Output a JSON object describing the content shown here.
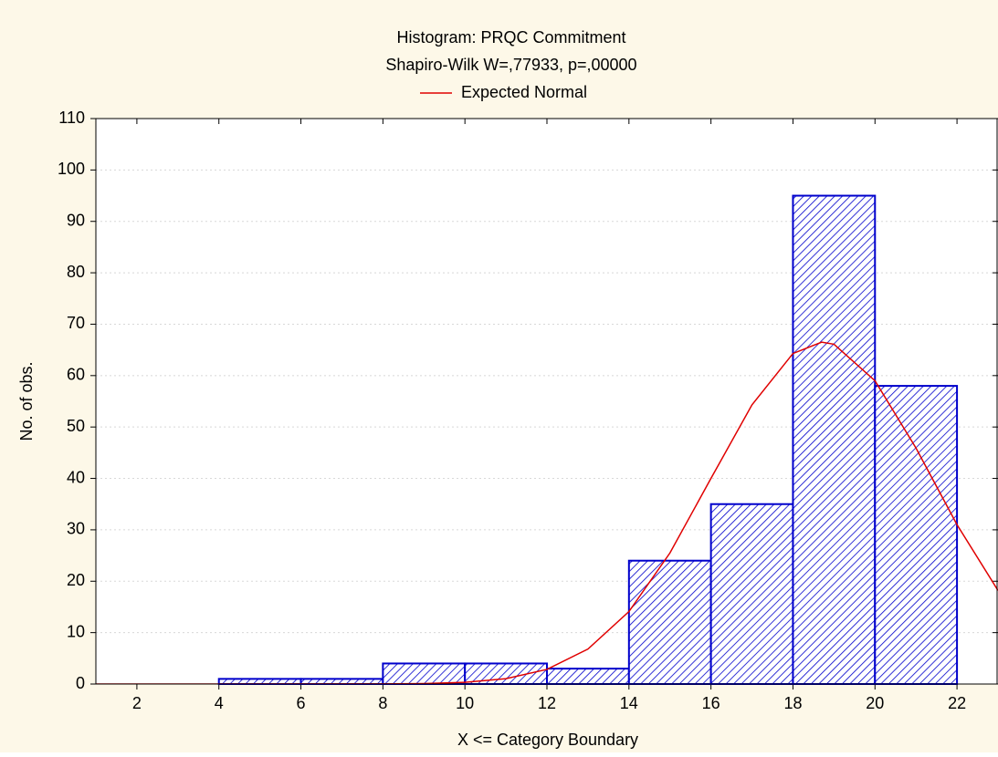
{
  "chart_data": {
    "type": "histogram",
    "title": "Histogram: PRQC Commitment",
    "subtitle": "Shapiro-Wilk W=,77933, p=,00000",
    "xlabel": "X <= Category Boundary",
    "ylabel": "No. of obs.",
    "bins": [
      4,
      6,
      8,
      10,
      12,
      14,
      16,
      18,
      20,
      22
    ],
    "values": [
      1,
      1,
      4,
      4,
      3,
      24,
      35,
      95,
      58
    ],
    "color": "#0000cc",
    "series": [
      {
        "name": "Expected Normal",
        "color": "#e00000",
        "x": [
          1,
          8,
          9,
          10,
          11,
          12,
          13,
          14,
          15,
          16,
          17,
          18,
          18.7,
          19,
          20,
          21,
          22,
          23
        ],
        "values": [
          0,
          0.02,
          0.09,
          0.33,
          1.04,
          2.85,
          6.8,
          14.1,
          25.5,
          40,
          54.3,
          64.3,
          66.5,
          66.1,
          59,
          45.9,
          31,
          18.2
        ]
      }
    ],
    "xlim": [
      1,
      23
    ],
    "xticks": [
      2,
      4,
      6,
      8,
      10,
      12,
      14,
      16,
      18,
      20,
      22
    ],
    "ylim": [
      0,
      110
    ],
    "yticks": [
      0,
      10,
      20,
      30,
      40,
      50,
      60,
      70,
      80,
      90,
      100,
      110
    ],
    "grid": true
  }
}
